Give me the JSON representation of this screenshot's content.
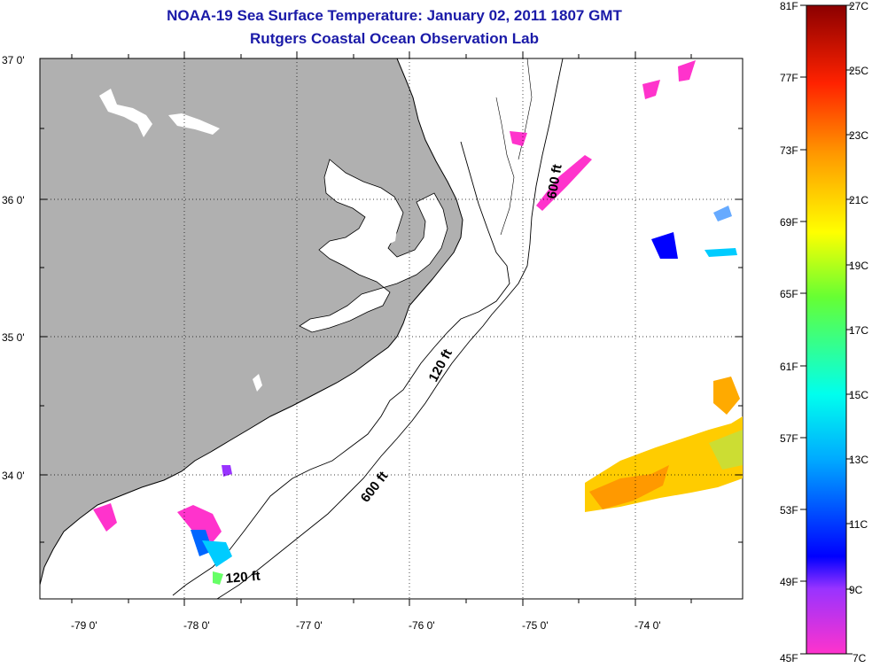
{
  "title": "NOAA-19 Sea Surface Temperature:  January 02, 2011 1807 GMT",
  "subtitle": "Rutgers Coastal Ocean Observation Lab",
  "axes": {
    "lon_ticks": [
      "-79 0'",
      "-78 0'",
      "-77 0'",
      "-76 0'",
      "-75 0'",
      "-74 0'"
    ],
    "lat_ticks": [
      "37 0'",
      "36 0'",
      "35 0'",
      "34 0'"
    ]
  },
  "contours": {
    "isobath_120": "120 ft",
    "isobath_600": "600 ft"
  },
  "colorbar": {
    "fahrenheit": [
      "81F",
      "77F",
      "73F",
      "69F",
      "65F",
      "61F",
      "57F",
      "53F",
      "49F",
      "45F"
    ],
    "celsius": [
      "27C",
      "25C",
      "23C",
      "21C",
      "19C",
      "17C",
      "15C",
      "13C",
      "11C",
      "9C",
      "7C"
    ]
  },
  "colors": {
    "land": "#b0b0b0",
    "title": "#1a1aa8"
  }
}
